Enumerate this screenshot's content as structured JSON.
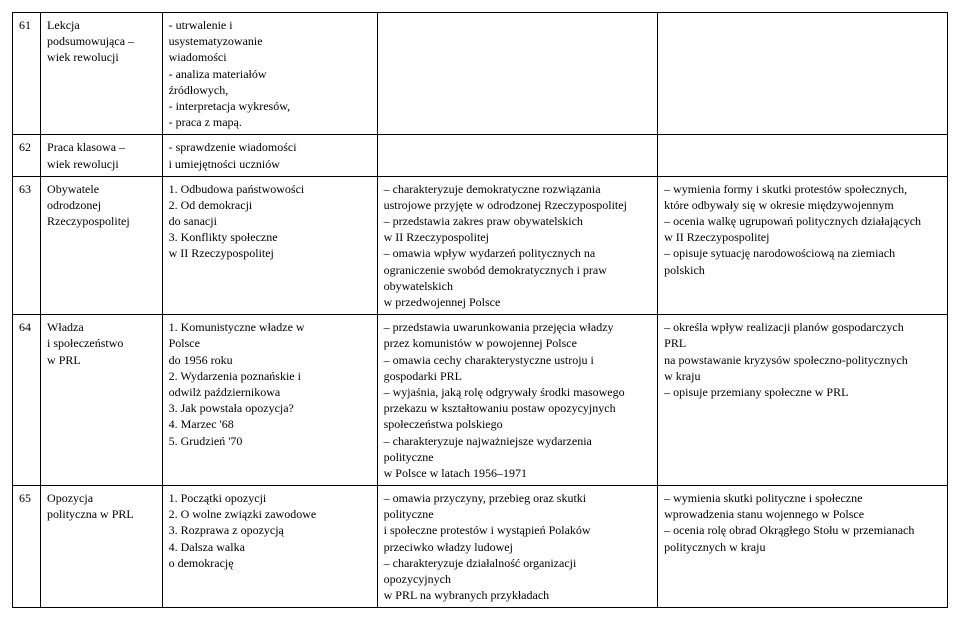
{
  "rows": [
    {
      "num": "61",
      "topic": "Lekcja\npodsumowująca –\nwiek rewolucji",
      "materials": "- utrwalenie i\nusystematyzowanie\nwiadomości\n- analiza materiałów\nźródłowych,\n- interpretacja wykresów,\n- praca z mapą.",
      "char": "",
      "out": ""
    },
    {
      "num": "62",
      "topic": "Praca klasowa –\nwiek rewolucji",
      "materials": "- sprawdzenie wiadomości\ni umiejętności uczniów",
      "char": "",
      "out": ""
    },
    {
      "num": "63",
      "topic": "Obywatele\nodrodzonej\nRzeczypospolitej",
      "materials": "1. Odbudowa państwowości\n2. Od demokracji\ndo sanacji\n3. Konflikty społeczne\nw II Rzeczypospolitej",
      "char": "– charakteryzuje demokratyczne rozwiązania\nustrojowe przyjęte w odrodzonej Rzeczypospolitej\n– przedstawia zakres praw obywatelskich\nw II Rzeczypospolitej\n– omawia wpływ wydarzeń politycznych na\nograniczenie swobód demokratycznych i praw\nobywatelskich\nw przedwojennej Polsce",
      "out": "– wymienia formy i skutki protestów społecznych,\nktóre odbywały się w okresie międzywojennym\n– ocenia walkę ugrupowań politycznych działających\n w II Rzeczypospolitej\n– opisuje sytuację narodowościową na ziemiach\npolskich"
    },
    {
      "num": "64",
      "topic": "Władza\ni społeczeństwo\nw PRL",
      "materials": "1. Komunistyczne władze w\nPolsce\ndo 1956 roku\n2. Wydarzenia poznańskie i\nodwilż październikowa\n3. Jak powstała opozycja?\n4. Marzec '68\n5. Grudzień '70",
      "char": "– przedstawia uwarunkowania przejęcia władzy\nprzez komunistów w powojennej Polsce\n– omawia cechy charakterystyczne ustroju i\ngospodarki PRL\n– wyjaśnia, jaką rolę odgrywały środki masowego\nprzekazu w kształtowaniu postaw opozycyjnych\nspołeczeństwa polskiego\n– charakteryzuje najważniejsze wydarzenia\npolityczne\nw Polsce w latach 1956–1971",
      "out": "– określa wpływ realizacji planów gospodarczych\nPRL\nna powstawanie kryzysów społeczno-politycznych\nw kraju\n– opisuje przemiany społeczne w PRL"
    },
    {
      "num": "65",
      "topic": "Opozycja\npolityczna w PRL",
      "materials": "1. Początki opozycji\n2. O wolne związki zawodowe\n3. Rozprawa z opozycją\n4. Dalsza walka\no demokrację",
      "char": "– omawia przyczyny, przebieg oraz skutki\npolityczne\ni społeczne protestów i wystąpień Polaków\nprzeciwko władzy ludowej\n– charakteryzuje działalność organizacji\nopozycyjnych\nw PRL na wybranych przykładach",
      "out": "– wymienia skutki polityczne i społeczne\nwprowadzenia stanu wojennego w Polsce\n– ocenia rolę obrad Okrągłego Stołu w przemianach\npolitycznych w kraju"
    }
  ]
}
